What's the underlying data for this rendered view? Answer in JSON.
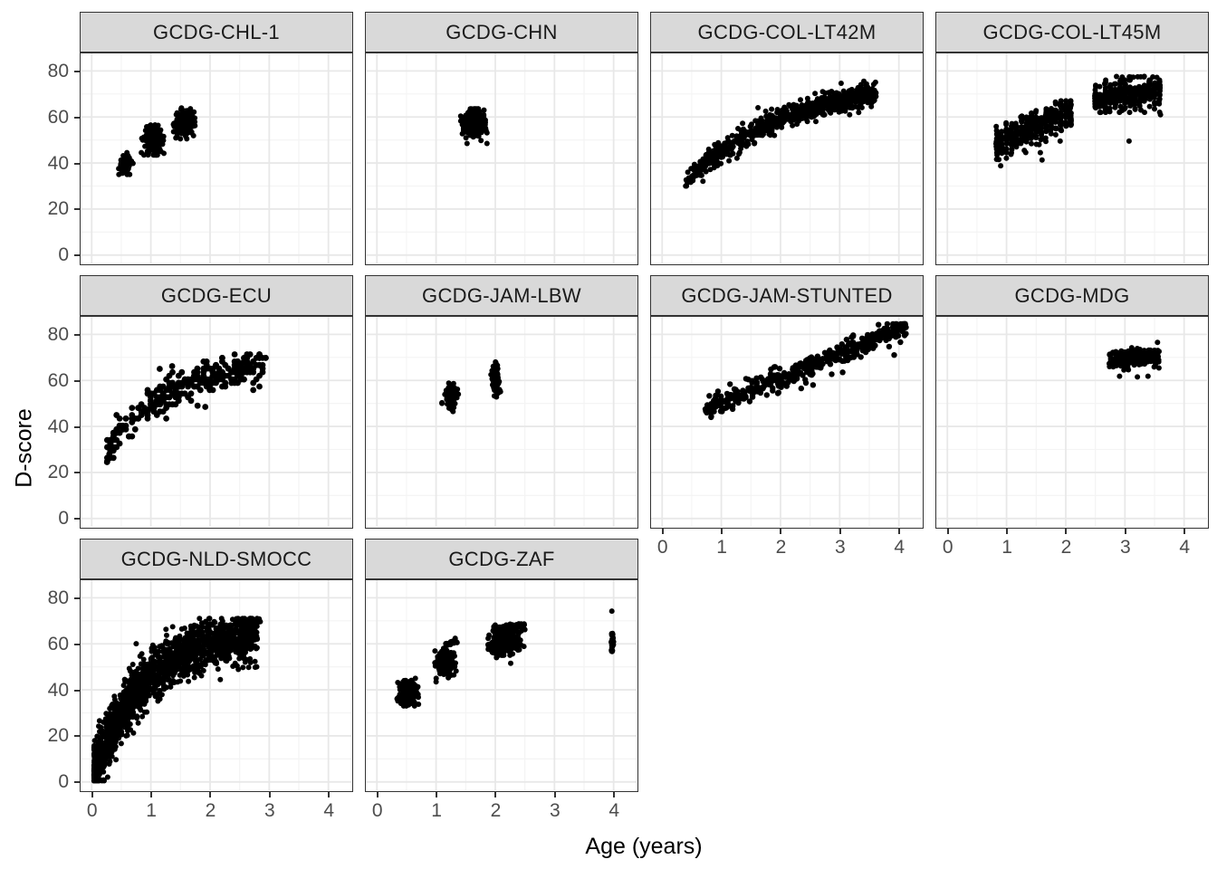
{
  "figure": {
    "y_axis_title": "D-score",
    "x_axis_title": "Age (years)",
    "colors": {
      "point": "#000000",
      "strip_fill": "#d9d9d9",
      "strip_border": "#333333",
      "panel_border": "#333333",
      "grid_major": "#e8e8e8",
      "grid_minor": "#f4f4f4",
      "tick_label": "#4d4d4d",
      "tick_mark": "#333333",
      "axis_title": "#000000",
      "background": "#ffffff"
    }
  },
  "chart_data": {
    "type": "scatter",
    "title": "",
    "xlabel": "Age (years)",
    "ylabel": "D-score",
    "x_ticks": [
      0,
      1,
      2,
      3,
      4
    ],
    "y_ticks": [
      0,
      20,
      40,
      60,
      80
    ],
    "x_minor_ticks": [
      0.5,
      1.5,
      2.5,
      3.5
    ],
    "y_minor_ticks": [
      10,
      30,
      50,
      70
    ],
    "x_domain": [
      -0.21,
      4.41
    ],
    "y_domain": [
      -4.2,
      88.2
    ],
    "grid": true,
    "legend": "none",
    "panels": [
      {
        "title": "GCDG-CHL-1",
        "row": 0,
        "col": 0,
        "y_axis": true,
        "x_axis": false,
        "r": 3,
        "clusters": [
          {
            "kind": "blob",
            "cx": 0.57,
            "cy": 39.5,
            "sx": 0.055,
            "sy": 2.1,
            "n": 85,
            "xmin": 0.44,
            "xmax": 0.72,
            "ymin": 35,
            "ymax": 44.5
          },
          {
            "kind": "blob",
            "cx": 1.04,
            "cy": 50,
            "sx": 0.08,
            "sy": 2.7,
            "n": 170,
            "xmin": 0.84,
            "xmax": 1.26,
            "ymin": 43.5,
            "ymax": 56.5
          },
          {
            "kind": "blob",
            "cx": 1.57,
            "cy": 57.5,
            "sx": 0.08,
            "sy": 2.9,
            "n": 170,
            "xmin": 1.38,
            "xmax": 1.78,
            "ymin": 50.5,
            "ymax": 65
          },
          {
            "kind": "points",
            "pts": [
              [
                1.22,
                44.2
              ]
            ]
          }
        ]
      },
      {
        "title": "GCDG-CHN",
        "row": 0,
        "col": 1,
        "y_axis": false,
        "x_axis": false,
        "r": 3,
        "clusters": [
          {
            "kind": "blob",
            "cx": 1.62,
            "cy": 57,
            "sx": 0.085,
            "sy": 2.9,
            "n": 330,
            "xmin": 1.4,
            "xmax": 1.86,
            "ymin": 48.5,
            "ymax": 63.5
          }
        ]
      },
      {
        "title": "GCDG-COL-LT42M",
        "row": 0,
        "col": 2,
        "y_axis": false,
        "x_axis": false,
        "r": 3,
        "clusters": [
          {
            "kind": "band",
            "fn": "exp",
            "x0": 0.39,
            "x1": 3.62,
            "n": 800,
            "a": 78,
            "b": 0.55,
            "c": 0.55,
            "sd": 2.4,
            "xpow": 0.8,
            "ymin": 30,
            "ymax": 77
          },
          {
            "kind": "points",
            "pts": [
              [
                1.62,
                64
              ],
              [
                0.45,
                33.5
              ],
              [
                1.75,
                62.5
              ]
            ]
          }
        ]
      },
      {
        "title": "GCDG-COL-LT45M",
        "row": 0,
        "col": 3,
        "y_axis": false,
        "x_axis": false,
        "r": 3,
        "clusters": [
          {
            "kind": "columns",
            "x0": 0.833,
            "x1": 2.083,
            "step": 0.0833,
            "perCol": 25,
            "a": 40,
            "b": 10.5,
            "sd": 3.4,
            "ymin": 39,
            "ymax": 67
          },
          {
            "kind": "columns",
            "x0": 2.5,
            "x1": 3.583,
            "step": 0.0833,
            "perCol": 27,
            "a": 58,
            "b": 3.8,
            "sd": 2.9,
            "ymin": 62,
            "ymax": 76
          },
          {
            "kind": "line",
            "x0": 2.75,
            "y0": 77.3,
            "x1": 3.58,
            "y1": 77.4,
            "n": 11,
            "sd": 0.1
          },
          {
            "kind": "points",
            "pts": [
              [
                0.87,
                41.5
              ],
              [
                0.9,
                38.8
              ],
              [
                1.55,
                48
              ],
              [
                1.57,
                44.5
              ],
              [
                1.6,
                41.3
              ],
              [
                1.3,
                45.5
              ],
              [
                3.07,
                49.5
              ],
              [
                3.27,
                63
              ],
              [
                3.6,
                61
              ],
              [
                2.95,
                62.8
              ]
            ]
          }
        ]
      },
      {
        "title": "GCDG-ECU",
        "row": 1,
        "col": 0,
        "y_axis": true,
        "x_axis": false,
        "r": 3.4,
        "clusters": [
          {
            "kind": "band",
            "fn": "loglin",
            "x0": 0.24,
            "x1": 2.95,
            "n": 310,
            "a": 50,
            "b": 16.5,
            "sd": 3.4,
            "xpow": 0.85,
            "qx": 0.0525,
            "qy": 1.55,
            "ymin": 23,
            "ymax": 75
          },
          {
            "kind": "points",
            "pts": [
              [
                0.26,
                24.5
              ],
              [
                0.3,
                28
              ],
              [
                0.35,
                31
              ],
              [
                1.15,
                65
              ],
              [
                1.36,
                66.2
              ],
              [
                1.79,
                49
              ],
              [
                1.92,
                48.5
              ]
            ]
          }
        ]
      },
      {
        "title": "GCDG-JAM-LBW",
        "row": 1,
        "col": 1,
        "y_axis": false,
        "x_axis": false,
        "r": 3,
        "clusters": [
          {
            "kind": "blob",
            "cx": 1.26,
            "cy": 53.5,
            "sx": 0.05,
            "sy": 2.7,
            "n": 80,
            "xmin": 1.1,
            "xmax": 1.42,
            "ymin": 46.5,
            "ymax": 59.5
          },
          {
            "kind": "blob",
            "cx": 2.0,
            "cy": 60.5,
            "sx": 0.035,
            "sy": 3.0,
            "n": 85,
            "xmin": 1.88,
            "xmax": 2.12,
            "ymin": 52.5,
            "ymax": 68
          },
          {
            "kind": "points",
            "pts": [
              [
                1.1,
                50.3
              ],
              [
                2.02,
                52.8
              ]
            ]
          }
        ]
      },
      {
        "title": "GCDG-JAM-STUNTED",
        "row": 1,
        "col": 2,
        "y_axis": false,
        "x_axis": true,
        "r": 3.2,
        "clusters": [
          {
            "kind": "band",
            "fn": "lin",
            "x0": 0.71,
            "x1": 4.12,
            "n": 430,
            "a": 40,
            "b": 10.5,
            "sd": 2.3,
            "xpow": 0.95,
            "ymin": 44,
            "ymax": 84.5
          },
          {
            "kind": "points",
            "pts": [
              [
                2.35,
                56.5
              ],
              [
                2.55,
                58
              ],
              [
                3.05,
                63.5
              ],
              [
                3.92,
                71
              ]
            ]
          }
        ]
      },
      {
        "title": "GCDG-MDG",
        "row": 1,
        "col": 3,
        "y_axis": false,
        "x_axis": true,
        "r": 3,
        "clusters": [
          {
            "kind": "band",
            "fn": "lin",
            "x0": 2.73,
            "x1": 3.58,
            "n": 240,
            "a": 66.5,
            "b": 1.1,
            "sd": 2.0,
            "xpow": 1,
            "ymin": 64.5,
            "ymax": 76
          },
          {
            "kind": "points",
            "pts": [
              [
                2.91,
                61.8
              ],
              [
                3.21,
                61.5
              ],
              [
                3.39,
                61.8
              ],
              [
                3.55,
                76.5
              ],
              [
                2.74,
                66
              ]
            ]
          }
        ]
      },
      {
        "title": "GCDG-NLD-SMOCC",
        "row": 2,
        "col": 0,
        "y_axis": true,
        "x_axis": true,
        "r": 3,
        "clusters": [
          {
            "kind": "band",
            "fn": "exp",
            "x0": 0.04,
            "x1": 2.8,
            "n": 1750,
            "a": 66,
            "b": 1.15,
            "c": 0,
            "sd": 5.5,
            "xpow": 1.6,
            "ymin": 0.5,
            "ymax": 71
          },
          {
            "kind": "line",
            "x0": 2.25,
            "y0": 67.3,
            "x1": 2.86,
            "y1": 70.3,
            "n": 45,
            "sd": 0.5
          },
          {
            "kind": "points",
            "pts": [
              [
                2.2,
                55
              ],
              [
                2.32,
                56.5
              ],
              [
                2.45,
                57.5
              ],
              [
                2.28,
                52.5
              ]
            ]
          }
        ]
      },
      {
        "title": "GCDG-ZAF",
        "row": 2,
        "col": 1,
        "y_axis": false,
        "x_axis": true,
        "r": 3,
        "clusters": [
          {
            "kind": "blob",
            "cx": 0.52,
            "cy": 38.5,
            "sx": 0.075,
            "sy": 2.5,
            "n": 250,
            "xmin": 0.34,
            "xmax": 0.72,
            "ymin": 33,
            "ymax": 45.5
          },
          {
            "kind": "blob",
            "cx": 1.17,
            "cy": 52,
            "sx": 0.07,
            "sy": 2.6,
            "n": 260,
            "xmin": 0.98,
            "xmax": 1.4,
            "ymin": 45,
            "ymax": 58
          },
          {
            "kind": "line",
            "x0": 1.16,
            "y0": 59.8,
            "x1": 1.36,
            "y1": 61.3,
            "n": 28,
            "sd": 0.4
          },
          {
            "kind": "blob",
            "cx": 2.17,
            "cy": 61,
            "sx": 0.12,
            "sy": 2.5,
            "n": 380,
            "xmin": 1.88,
            "xmax": 2.5,
            "ymin": 55,
            "ymax": 66.2
          },
          {
            "kind": "line",
            "x0": 1.97,
            "y0": 66.6,
            "x1": 2.5,
            "y1": 68.4,
            "n": 50,
            "sd": 0.45
          },
          {
            "kind": "strip",
            "cx": 3.98,
            "sx": 0.012,
            "y0": 56.2,
            "y1": 65.8,
            "n": 26
          },
          {
            "kind": "points",
            "pts": [
              [
                3.97,
                74.2
              ],
              [
                1.0,
                43.5
              ],
              [
                1.21,
                45.5
              ],
              [
                2.02,
                54
              ],
              [
                2.26,
                51.5
              ],
              [
                0.65,
                45
              ],
              [
                1.3,
                46.5
              ]
            ]
          }
        ]
      }
    ]
  }
}
